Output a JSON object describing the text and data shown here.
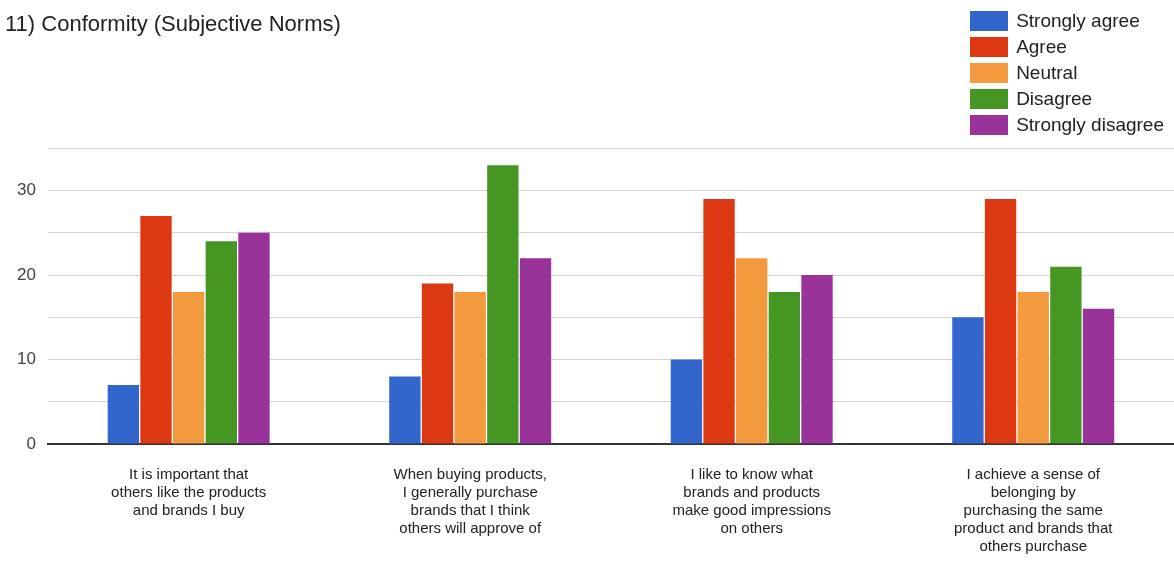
{
  "chart_data": {
    "type": "bar",
    "title": "11) Conformity (Subjective Norms)",
    "categories": [
      "It is important that others like the products and brands I buy",
      "When buying products, I generally purchase brands that I think others will approve of",
      "I like to know what brands and products make good impressions on others",
      "I achieve a sense of belonging by purchasing the same product and brands that others purchase"
    ],
    "series": [
      {
        "name": "Strongly agree",
        "color": "#3366cc",
        "values": [
          7,
          8,
          10,
          15
        ]
      },
      {
        "name": "Agree",
        "color": "#dc3912",
        "values": [
          27,
          19,
          29,
          29
        ]
      },
      {
        "name": "Neutral",
        "color": "#f29a3d",
        "values": [
          18,
          18,
          22,
          18
        ]
      },
      {
        "name": "Disagree",
        "color": "#469623",
        "values": [
          24,
          33,
          18,
          21
        ]
      },
      {
        "name": "Strongly disagree",
        "color": "#993399",
        "values": [
          25,
          22,
          20,
          16
        ]
      }
    ],
    "ylim": [
      0,
      35
    ],
    "yticks": [
      0,
      {
        "value": 5,
        "label": null
      },
      10,
      {
        "value": 15,
        "label": null
      },
      20,
      {
        "value": 25,
        "label": null
      },
      30,
      {
        "value": 35,
        "label": null
      }
    ],
    "grid": "y",
    "legend": "top right"
  }
}
